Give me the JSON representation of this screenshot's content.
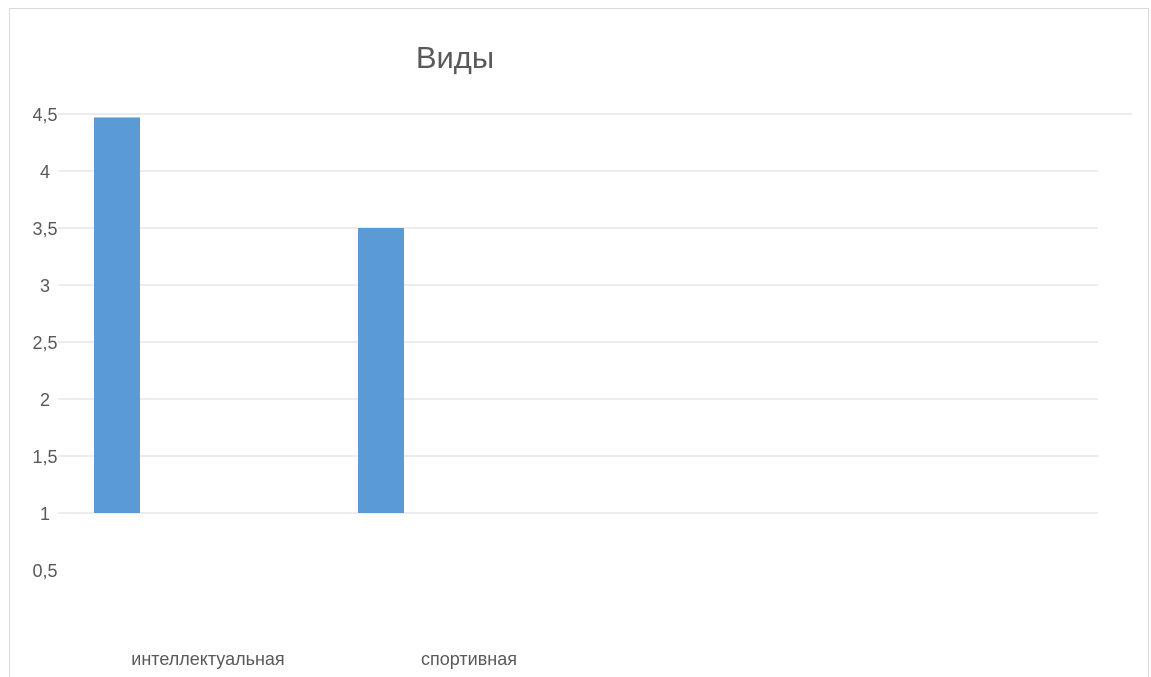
{
  "chart_data": {
    "type": "bar",
    "title": "Виды",
    "categories": [
      "интеллектуальная",
      "спортивная"
    ],
    "values": [
      4.47,
      3.5
    ],
    "y_ticks": [
      "4,5",
      "4",
      "3,5",
      "3",
      "2,5",
      "2",
      "1,5",
      "1",
      "0,5"
    ],
    "ylim": [
      0.5,
      4.5
    ],
    "baseline": 1,
    "grid": true,
    "bar_color": "#5b9bd5",
    "grid_color": "#d9d9d9",
    "text_color": "#595959",
    "xlabel": "",
    "ylabel": ""
  }
}
